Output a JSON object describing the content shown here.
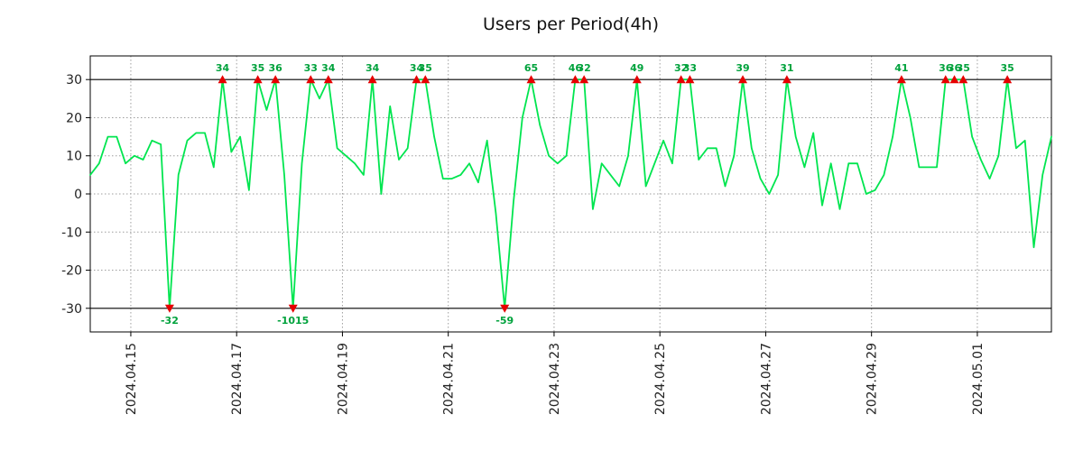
{
  "figure": {
    "title": "Users per Period(4h)"
  },
  "colors": {
    "line": "#00e54f",
    "marker": "#e60000",
    "annotation": "#00a23c",
    "grid": "#9e9e9e",
    "frame": "#000000",
    "tick_text": "#222222",
    "title_text": "#111111",
    "background": "#ffffff"
  },
  "chart_data": {
    "type": "line",
    "title": "Users per Period(4h)",
    "xlabel": "",
    "ylabel": "",
    "x_period_hours": 4,
    "ylim": [
      -36.2,
      36.2
    ],
    "clip_level": 30,
    "yticks": [
      30,
      20,
      10,
      0,
      -10,
      -20,
      -30
    ],
    "grid": true,
    "legend": "none",
    "x_ticks": [
      {
        "label": "2024.04.15",
        "i": 4.6
      },
      {
        "label": "2024.04.17",
        "i": 16.6
      },
      {
        "label": "2024.04.19",
        "i": 28.6
      },
      {
        "label": "2024.04.21",
        "i": 40.6
      },
      {
        "label": "2024.04.23",
        "i": 52.6
      },
      {
        "label": "2024.04.25",
        "i": 64.6
      },
      {
        "label": "2024.04.27",
        "i": 76.6
      },
      {
        "label": "2024.04.29",
        "i": 88.6
      },
      {
        "label": "2024.05.01",
        "i": 100.6
      }
    ],
    "values": [
      5,
      8,
      15,
      15,
      8,
      10,
      9,
      14,
      13,
      -32,
      5,
      14,
      16,
      16,
      7,
      34,
      11,
      15,
      1,
      35,
      22,
      36,
      5,
      -1015,
      8,
      33,
      25,
      34,
      12,
      10,
      8,
      5,
      34,
      0,
      23,
      9,
      12,
      34,
      35,
      15,
      4,
      4,
      5,
      8,
      3,
      14,
      -5,
      -59,
      -2,
      20,
      65,
      18,
      10,
      8,
      10,
      46,
      32,
      -4,
      8,
      5,
      2,
      10,
      49,
      2,
      8,
      14,
      8,
      32,
      33,
      9,
      12,
      12,
      2,
      10,
      39,
      12,
      4,
      0,
      5,
      31,
      15,
      7,
      16,
      -3,
      8,
      -4,
      8,
      8,
      0,
      1,
      5,
      15,
      41,
      20,
      7,
      7,
      7,
      36,
      36,
      35,
      15,
      9,
      4,
      10,
      35,
      12,
      14,
      -14,
      5,
      15
    ],
    "annotation_rule": "values above +30 are clipped at +30 with a red up-triangle and green value label; values below -30 are clipped at -30 with a red down-triangle and green value label",
    "peak_labels": [
      "34",
      "35",
      "36",
      "33",
      "34",
      "34",
      "34",
      "35",
      "65",
      "46",
      "32",
      "49",
      "32",
      "33",
      "39",
      "31",
      "41",
      "36",
      "36",
      "35",
      "35"
    ],
    "valley_labels": [
      "-32",
      "-1015",
      "-59"
    ]
  }
}
